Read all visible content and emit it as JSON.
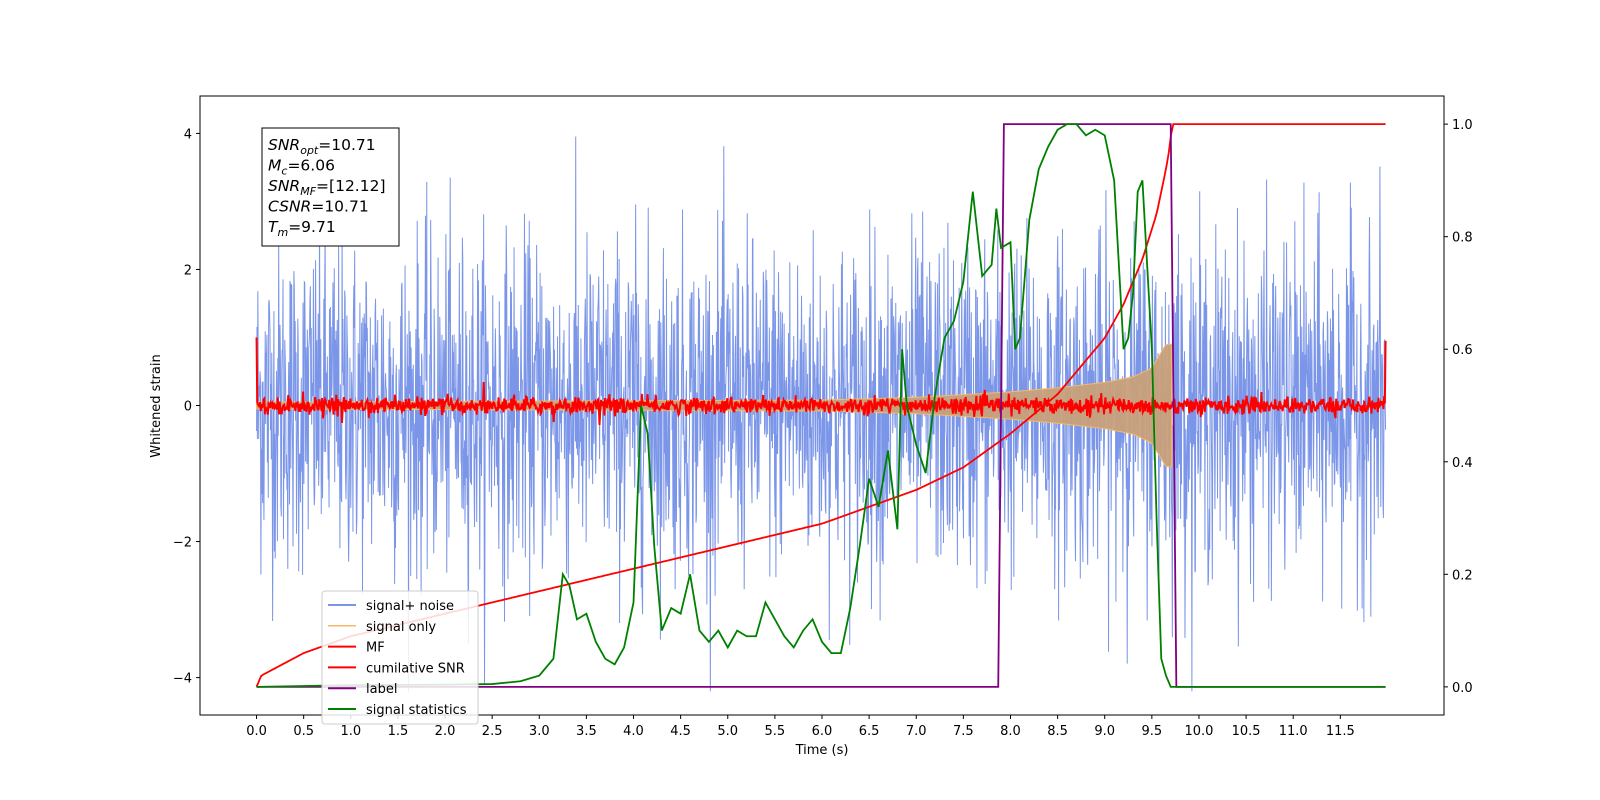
{
  "chart_data": {
    "type": "line",
    "xlabel": "Time (s)",
    "ylabel": "Whitened strain",
    "xlim": [
      -0.6,
      12.6
    ],
    "ylim": [
      -4.55,
      4.55
    ],
    "y2lim": [
      -0.05,
      1.05
    ],
    "x_ticks": [
      0.0,
      0.5,
      1.0,
      1.5,
      2.0,
      2.5,
      3.0,
      3.5,
      4.0,
      4.5,
      5.0,
      5.5,
      6.0,
      6.5,
      7.0,
      7.5,
      8.0,
      8.5,
      9.0,
      9.5,
      10.0,
      10.5,
      11.0,
      11.5
    ],
    "x_tick_labels": [
      "0.0",
      "0.5",
      "1.0",
      "1.5",
      "2.0",
      "2.5",
      "3.0",
      "3.5",
      "4.0",
      "4.5",
      "5.0",
      "5.5",
      "6.0",
      "6.5",
      "7.0",
      "7.5",
      "8.0",
      "8.5",
      "9.0",
      "9.5",
      "10.0",
      "10.5",
      "11.0",
      "11.5"
    ],
    "y_ticks": [
      -4,
      -2,
      0,
      2,
      4
    ],
    "y_tick_labels": [
      "−4",
      "−2",
      "0",
      "2",
      "4"
    ],
    "y2_ticks": [
      0.0,
      0.2,
      0.4,
      0.6,
      0.8,
      1.0
    ],
    "y2_tick_labels": [
      "0.0",
      "0.2",
      "0.4",
      "0.6",
      "0.8",
      "1.0"
    ],
    "legend_position": "lower-left",
    "series": [
      {
        "name": "signal+ noise",
        "color": "#7b96e8",
        "axis": "left",
        "style": "noise",
        "x_range": [
          0.0,
          11.98
        ],
        "std": 1.05,
        "amplitude_range": [
          -4.2,
          4.2
        ]
      },
      {
        "name": "signal only",
        "color": "#f5b968",
        "axis": "left",
        "style": "chirp",
        "x_range": [
          0.0,
          9.71
        ],
        "amplitude": [
          [
            0.0,
            0.05
          ],
          [
            6.0,
            0.08
          ],
          [
            7.0,
            0.12
          ],
          [
            8.0,
            0.2
          ],
          [
            8.5,
            0.26
          ],
          [
            9.0,
            0.34
          ],
          [
            9.3,
            0.42
          ],
          [
            9.5,
            0.55
          ],
          [
            9.65,
            0.9
          ],
          [
            9.71,
            0.9
          ]
        ]
      },
      {
        "name": "MF",
        "color": "#ff0000",
        "axis": "left",
        "style": "noise",
        "x_range": [
          0.0,
          11.98
        ],
        "std": 0.06,
        "edge_values": [
          1.0,
          0.95
        ]
      },
      {
        "name": "cumilative SNR",
        "color": "#ff0000",
        "axis": "right",
        "x": [
          0.0,
          0.05,
          0.5,
          1.0,
          1.5,
          2.0,
          2.5,
          3.0,
          3.5,
          4.0,
          4.5,
          5.0,
          5.5,
          6.0,
          6.5,
          7.0,
          7.5,
          8.0,
          8.5,
          9.0,
          9.2,
          9.4,
          9.55,
          9.65,
          9.7,
          9.71,
          11.98
        ],
        "y": [
          0.0,
          0.02,
          0.06,
          0.09,
          0.11,
          0.13,
          0.15,
          0.17,
          0.19,
          0.21,
          0.23,
          0.25,
          0.27,
          0.29,
          0.32,
          0.35,
          0.39,
          0.45,
          0.52,
          0.62,
          0.68,
          0.76,
          0.84,
          0.92,
          0.97,
          1.0,
          1.0
        ]
      },
      {
        "name": "label",
        "color": "#800080",
        "axis": "right",
        "x": [
          0.0,
          7.87,
          7.93,
          9.7,
          9.76,
          11.98
        ],
        "y": [
          0.0,
          0.0,
          1.0,
          1.0,
          0.0,
          0.0
        ]
      },
      {
        "name": "signal statistics",
        "color": "#008000",
        "axis": "right",
        "x": [
          0.0,
          1.0,
          2.0,
          2.5,
          2.8,
          3.0,
          3.15,
          3.25,
          3.32,
          3.4,
          3.5,
          3.6,
          3.7,
          3.8,
          3.9,
          4.0,
          4.08,
          4.15,
          4.22,
          4.3,
          4.4,
          4.5,
          4.6,
          4.7,
          4.8,
          4.9,
          5.0,
          5.1,
          5.2,
          5.3,
          5.4,
          5.5,
          5.6,
          5.7,
          5.8,
          5.9,
          6.0,
          6.1,
          6.2,
          6.3,
          6.4,
          6.5,
          6.6,
          6.7,
          6.8,
          6.85,
          6.9,
          7.0,
          7.1,
          7.2,
          7.3,
          7.4,
          7.5,
          7.6,
          7.7,
          7.8,
          7.85,
          7.9,
          8.0,
          8.05,
          8.1,
          8.2,
          8.3,
          8.4,
          8.5,
          8.6,
          8.7,
          8.8,
          8.9,
          9.0,
          9.1,
          9.2,
          9.25,
          9.3,
          9.35,
          9.4,
          9.5,
          9.55,
          9.6,
          9.65,
          9.7,
          9.75,
          10.0,
          11.0,
          11.98
        ],
        "y": [
          0.0,
          0.003,
          0.004,
          0.005,
          0.01,
          0.02,
          0.05,
          0.2,
          0.18,
          0.12,
          0.13,
          0.08,
          0.05,
          0.04,
          0.07,
          0.15,
          0.5,
          0.45,
          0.25,
          0.1,
          0.14,
          0.13,
          0.2,
          0.1,
          0.08,
          0.1,
          0.07,
          0.1,
          0.09,
          0.09,
          0.15,
          0.12,
          0.09,
          0.07,
          0.1,
          0.12,
          0.08,
          0.06,
          0.06,
          0.14,
          0.25,
          0.37,
          0.32,
          0.42,
          0.28,
          0.6,
          0.5,
          0.43,
          0.38,
          0.52,
          0.62,
          0.65,
          0.72,
          0.88,
          0.73,
          0.75,
          0.85,
          0.78,
          0.79,
          0.6,
          0.62,
          0.83,
          0.92,
          0.96,
          0.99,
          1.0,
          1.0,
          0.98,
          0.99,
          0.98,
          0.9,
          0.6,
          0.62,
          0.7,
          0.88,
          0.9,
          0.6,
          0.3,
          0.05,
          0.02,
          0.0,
          0.0,
          0.0,
          0.0,
          0.0
        ]
      }
    ],
    "annotations": [
      {
        "base": "SNR",
        "sub": "opt",
        "value": "=10.71"
      },
      {
        "base": "M",
        "sub": "c",
        "value": "=6.06"
      },
      {
        "base": "SNR",
        "sub": "MF",
        "value": "=[12.12]"
      },
      {
        "base": "CSNR",
        "sub": "",
        "value": "=10.71"
      },
      {
        "base": "T",
        "sub": "m",
        "value": "=9.71"
      }
    ]
  }
}
